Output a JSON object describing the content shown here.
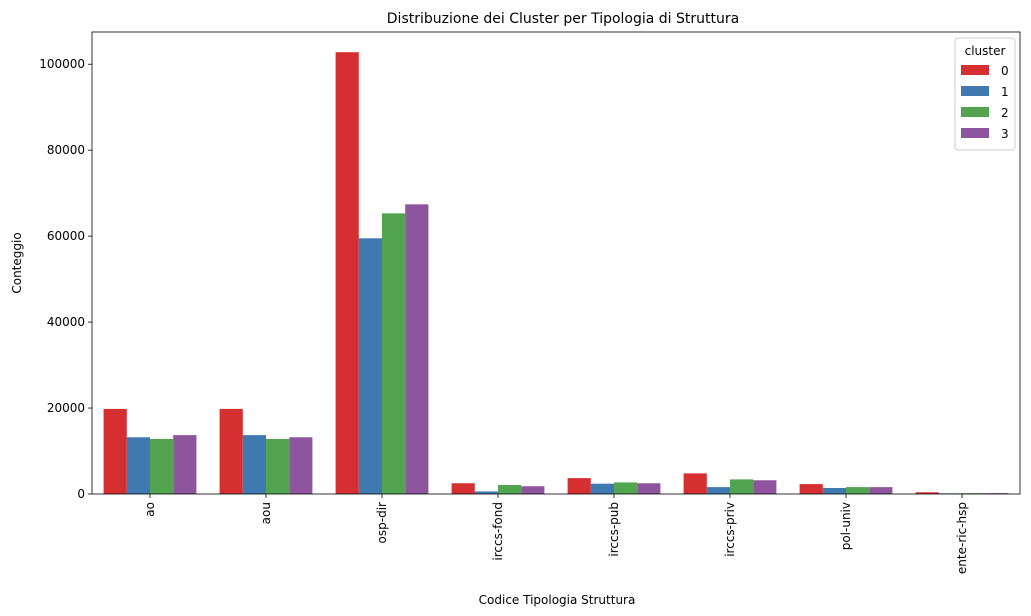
{
  "chart_data": {
    "type": "bar",
    "title": "Distribuzione dei Cluster per Tipologia di Struttura",
    "xlabel": "Codice Tipologia Struttura",
    "ylabel": "Conteggio",
    "categories": [
      "ao",
      "aou",
      "osp-dir",
      "irccs-fond",
      "irccs-pub",
      "irccs-priv",
      "pol-univ",
      "ente-ric-hsp"
    ],
    "ylim": [
      0,
      107500
    ],
    "yticks": [
      0,
      20000,
      40000,
      60000,
      80000,
      100000
    ],
    "legend": {
      "title": "cluster",
      "placement": "top-right"
    },
    "series": [
      {
        "name": "0",
        "color": "#d62f32",
        "values": [
          19800,
          19800,
          102800,
          2500,
          3700,
          4800,
          2300,
          400
        ]
      },
      {
        "name": "1",
        "color": "#3f79b0",
        "values": [
          13200,
          13700,
          59500,
          600,
          2400,
          1600,
          1400,
          150
        ]
      },
      {
        "name": "2",
        "color": "#53a450",
        "values": [
          12800,
          12800,
          65300,
          2100,
          2700,
          3400,
          1600,
          200
        ]
      },
      {
        "name": "3",
        "color": "#8f549e",
        "values": [
          13700,
          13200,
          67400,
          1800,
          2500,
          3200,
          1600,
          200
        ]
      }
    ]
  }
}
